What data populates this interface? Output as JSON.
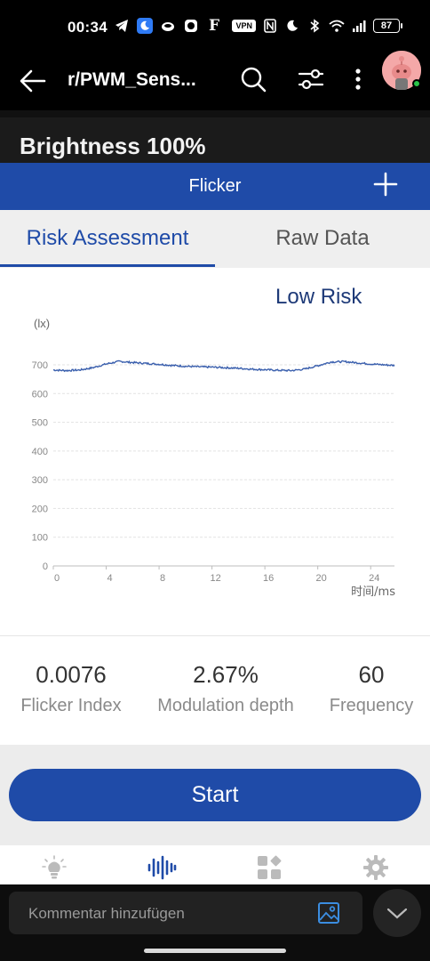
{
  "status_bar": {
    "time": "00:34",
    "vpn": "VPN",
    "battery": "87"
  },
  "app_bar": {
    "title": "r/PWM_Sens..."
  },
  "screenshot": {
    "brightness": "Brightness 100%",
    "header_title": "Flicker",
    "tabs": [
      {
        "label": "Risk Assessment",
        "active": true
      },
      {
        "label": "Raw Data",
        "active": false
      }
    ],
    "risk_level": "Low Risk",
    "metrics": [
      {
        "value": "0.0076",
        "label": "Flicker Index"
      },
      {
        "value": "2.67%",
        "label": "Modulation depth"
      },
      {
        "value": "60",
        "label": "Frequency"
      }
    ],
    "start_label": "Start",
    "nav_icons": [
      "bulb-icon",
      "waveform-icon",
      "apps-icon",
      "gear-icon"
    ]
  },
  "chart_data": {
    "type": "line",
    "ylabel": "(lx)",
    "xlabel": "时间/ms",
    "y_ticks": [
      "700",
      "600",
      "500",
      "400",
      "300",
      "200",
      "100",
      "0"
    ],
    "x_ticks": [
      "0",
      "4",
      "8",
      "12",
      "16",
      "20",
      "24"
    ],
    "ylim": [
      0,
      700
    ],
    "xlim": [
      0,
      25.8
    ],
    "grid": true,
    "color": "#3a5fad",
    "x": [
      0,
      1,
      2,
      3,
      4,
      5,
      6,
      7,
      8,
      9,
      10,
      11,
      12,
      13,
      14,
      15,
      16,
      17,
      18,
      19,
      20,
      21,
      22,
      23,
      24,
      25,
      25.8
    ],
    "y": [
      682,
      680,
      682,
      690,
      703,
      712,
      708,
      705,
      702,
      698,
      695,
      693,
      692,
      690,
      688,
      685,
      683,
      681,
      680,
      685,
      697,
      710,
      711,
      707,
      703,
      700,
      698
    ]
  },
  "comment_bar": {
    "placeholder": "Kommentar hinzufügen"
  },
  "colors": {
    "accent": "#1f4ba8",
    "risk_text": "#1e3a78"
  }
}
